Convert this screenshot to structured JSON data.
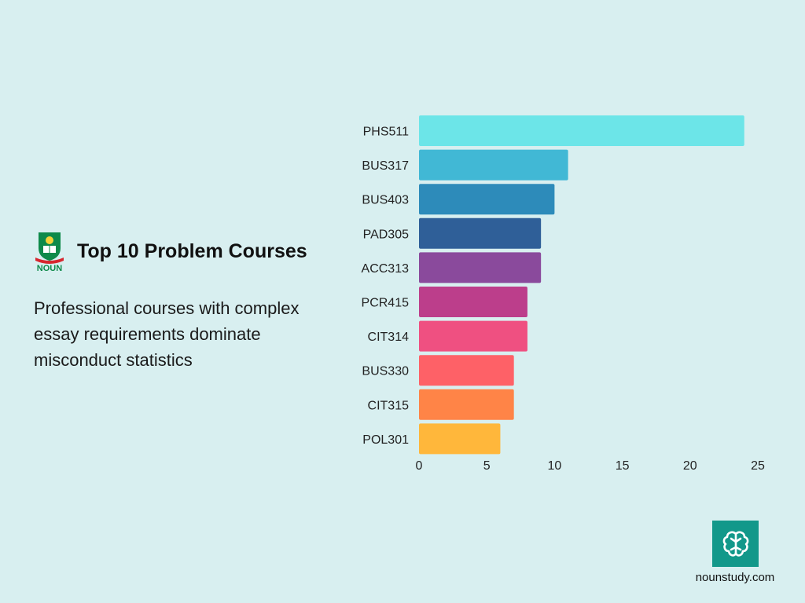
{
  "title": "Top 10 Problem Courses",
  "subtitle": "Professional courses with complex essay requirements dominate misconduct statistics",
  "logo": {
    "text": "NOUN",
    "icon": "noun-crest-icon"
  },
  "footer": {
    "site": "nounstudy.com",
    "icon": "brain-icon"
  },
  "chart_data": {
    "type": "bar",
    "orientation": "horizontal",
    "categories": [
      "PHS511",
      "BUS317",
      "BUS403",
      "PAD305",
      "ACC313",
      "PCR415",
      "CIT314",
      "BUS330",
      "CIT315",
      "POL301"
    ],
    "values": [
      24,
      11,
      10,
      9,
      9,
      8,
      8,
      7,
      7,
      6
    ],
    "colors": [
      "#6ce5e8",
      "#41b8d5",
      "#2d8bba",
      "#2f5f98",
      "#8a4a9c",
      "#bc3e8b",
      "#ef5081",
      "#fe6167",
      "#ff8447",
      "#ffb73b"
    ],
    "xticks": [
      0,
      5,
      10,
      15,
      20,
      25
    ],
    "xlim": [
      0,
      25
    ],
    "grid": false,
    "legend": false
  }
}
